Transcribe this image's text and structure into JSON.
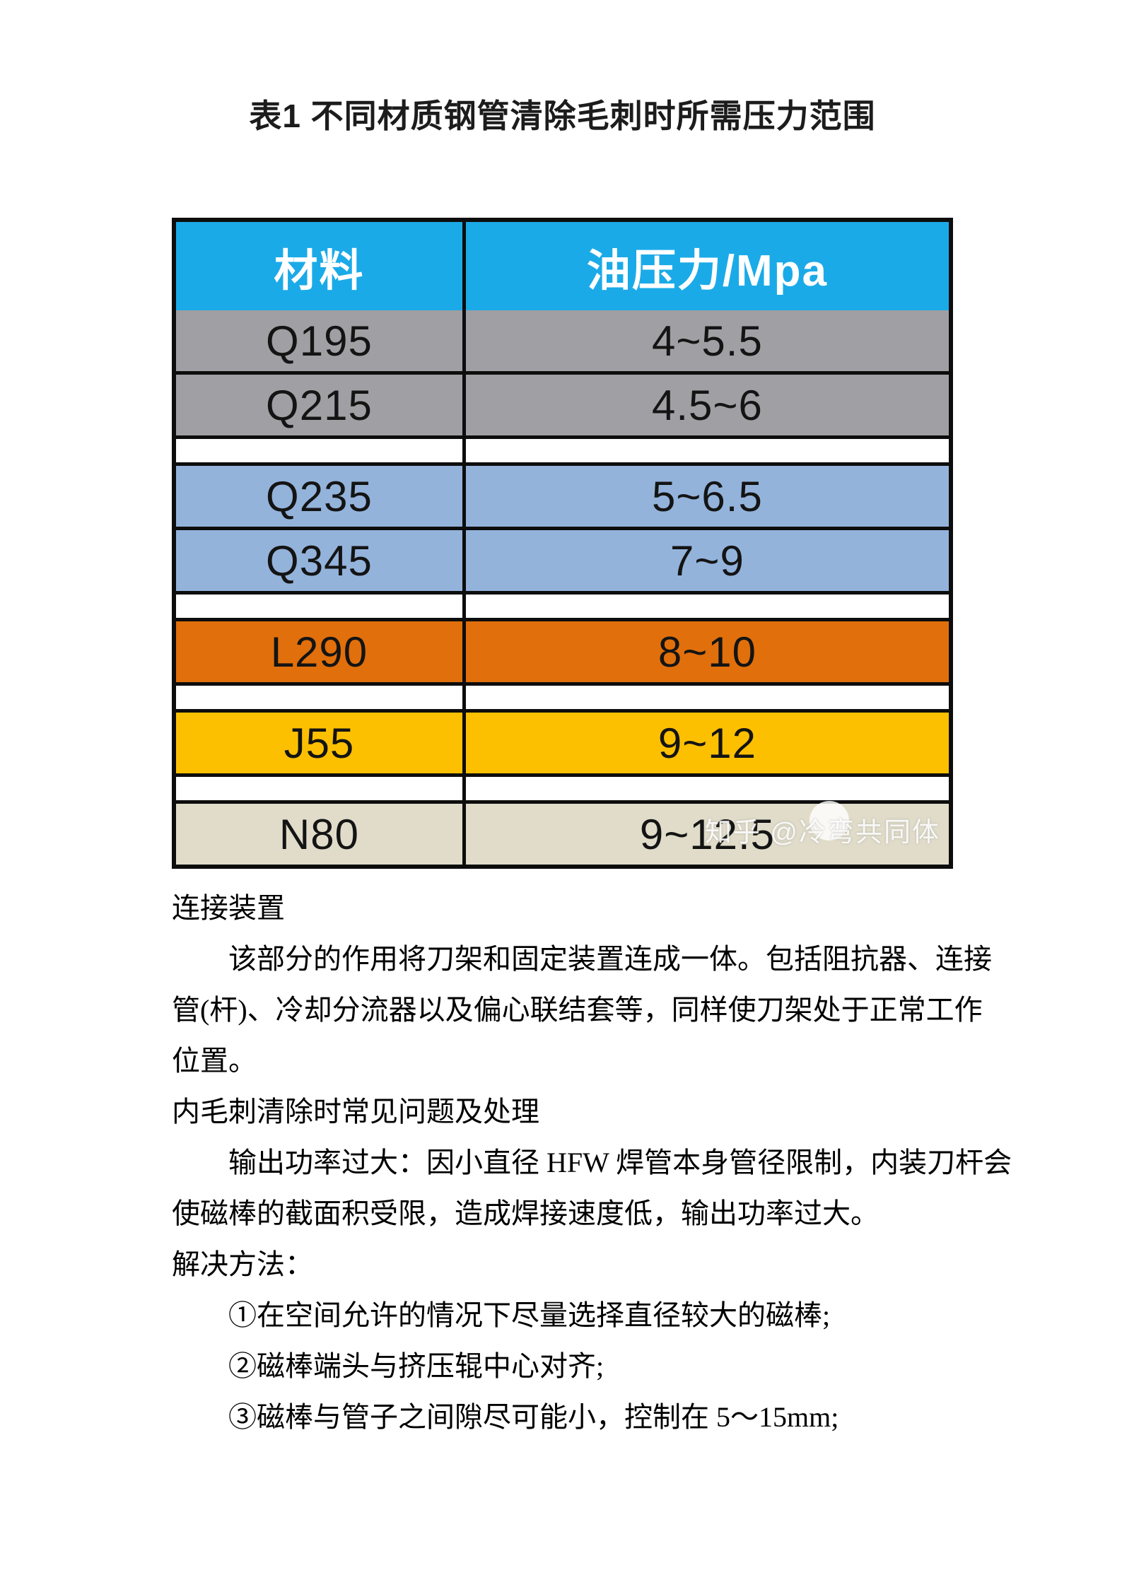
{
  "title": "表1 不同材质钢管清除毛刺时所需压力范围",
  "table": {
    "headers": [
      "材料",
      "油压力/Mpa"
    ],
    "header_bg": "#1baae8",
    "border_color": "#0d0d0d",
    "rows": [
      {
        "material": "Q195",
        "pressure": "4~5.5",
        "bg": "#a09fa3",
        "gap_after": false
      },
      {
        "material": "Q215",
        "pressure": "4.5~6",
        "bg": "#a09fa3",
        "gap_after": true
      },
      {
        "material": "Q235",
        "pressure": "5~6.5",
        "bg": "#93b3db",
        "gap_after": false
      },
      {
        "material": "Q345",
        "pressure": "7~9",
        "bg": "#93b3db",
        "gap_after": true
      },
      {
        "material": "L290",
        "pressure": "8~10",
        "bg": "#e16f0b",
        "gap_after": true
      },
      {
        "material": "J55",
        "pressure": "9~12",
        "bg": "#fdc000",
        "gap_after": true
      },
      {
        "material": "N80",
        "pressure": "9~12.5",
        "bg": "#e0dcc9",
        "gap_after": false
      }
    ]
  },
  "watermark": {
    "text": "知乎 @冷弯共同体"
  },
  "body": {
    "lines": [
      {
        "text": "连接装置",
        "indent": false
      },
      {
        "text": "该部分的作用将刀架和固定装置连成一体。包括阻抗器、连接",
        "indent": true
      },
      {
        "text": "管(杆)、冷却分流器以及偏心联结套等，同样使刀架处于正常工作",
        "indent": false
      },
      {
        "text": "位置。",
        "indent": false
      },
      {
        "text": "内毛刺清除时常见问题及处理",
        "indent": false
      },
      {
        "text": "输出功率过大：因小直径 HFW 焊管本身管径限制，内装刀杆会",
        "indent": true
      },
      {
        "text": "使磁棒的截面积受限，造成焊接速度低，输出功率过大。",
        "indent": false
      },
      {
        "text": "解决方法：",
        "indent": false
      },
      {
        "text": "①在空间允许的情况下尽量选择直径较大的磁棒;",
        "indent": true
      },
      {
        "text": "②磁棒端头与挤压辊中心对齐;",
        "indent": true
      },
      {
        "text": "③磁棒与管子之间隙尽可能小，控制在 5～15mm;",
        "indent": true
      }
    ]
  }
}
